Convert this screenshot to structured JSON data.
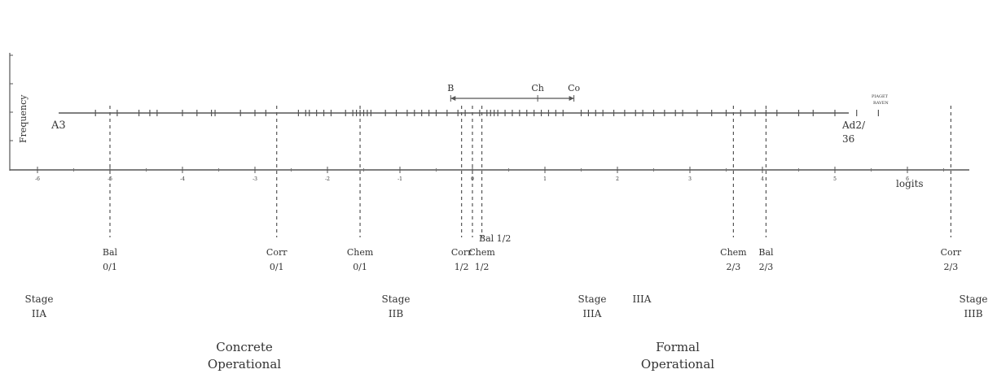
{
  "y_axis_label": "Frequency",
  "x_axis_label": "logits",
  "x_ticks": [
    "-6",
    "-5",
    "-4",
    "-3",
    "-2",
    "-1",
    "0",
    "1",
    "2",
    "3",
    "4",
    "5",
    "6"
  ],
  "legend_small": {
    "line1": "PIAGET",
    "line2": "RAVEN"
  },
  "line_labels": {
    "left": "A3",
    "right_line1": "Ad2/",
    "right_line2": "36"
  },
  "bracket": {
    "labels": [
      "B",
      "Ch",
      "Co"
    ],
    "values": [
      -0.3,
      0.9,
      1.4
    ]
  },
  "item_logits": [
    -5.2,
    -4.9,
    -4.6,
    -4.45,
    -4.35,
    -4.0,
    -3.8,
    -3.6,
    -3.55,
    -3.2,
    -3.0,
    -2.85,
    -2.4,
    -2.3,
    -2.25,
    -2.15,
    -2.05,
    -1.95,
    -1.75,
    -1.65,
    -1.6,
    -1.55,
    -1.5,
    -1.45,
    -1.4,
    -1.2,
    -1.05,
    -0.9,
    -0.8,
    -0.7,
    -0.6,
    -0.5,
    -0.35,
    -0.2,
    -0.1,
    0.1,
    0.2,
    0.25,
    0.3,
    0.35,
    0.45,
    0.55,
    0.65,
    0.75,
    0.85,
    0.95,
    1.05,
    1.15,
    1.25,
    1.5,
    1.6,
    1.7,
    1.8,
    1.95,
    2.1,
    2.25,
    2.35,
    2.5,
    2.65,
    2.8,
    2.9,
    3.1,
    3.3,
    3.5,
    3.7,
    3.9,
    4.05,
    4.2,
    4.5,
    4.7,
    5.0,
    5.3,
    5.6
  ],
  "thresholds": [
    {
      "label1": "Bal",
      "label2": "0/1",
      "logit": -5.0
    },
    {
      "label1": "Corr",
      "label2": "0/1",
      "logit": -2.7
    },
    {
      "label1": "Chem",
      "label2": "0/1",
      "logit": -1.55
    },
    {
      "label1": "Corr",
      "label2": "1/2",
      "logit": -0.15
    },
    {
      "label1": "Chem",
      "label2": "1/2",
      "logit": 0.13
    },
    {
      "label1": "Chem",
      "label2": "2/3",
      "logit": 3.6
    },
    {
      "label1": "Bal",
      "label2": "2/3",
      "logit": 4.05
    },
    {
      "label1": "Corr",
      "label2": "2/3",
      "logit": 6.6
    }
  ],
  "bal_half": {
    "label": "Bal 1/2",
    "logit": 0.0
  },
  "stages": [
    {
      "line1": "Stage",
      "line2": "IIA"
    },
    {
      "line1": "Stage",
      "line2": "IIB"
    },
    {
      "line1": "Stage",
      "line2": "IIIA"
    },
    {
      "line1": "IIIA",
      "line2": ""
    },
    {
      "line1": "Stage",
      "line2": "IIIB"
    }
  ],
  "periods": [
    {
      "line1": "Concrete",
      "line2": "Operational"
    },
    {
      "line1": "Formal",
      "line2": "Operational"
    }
  ]
}
